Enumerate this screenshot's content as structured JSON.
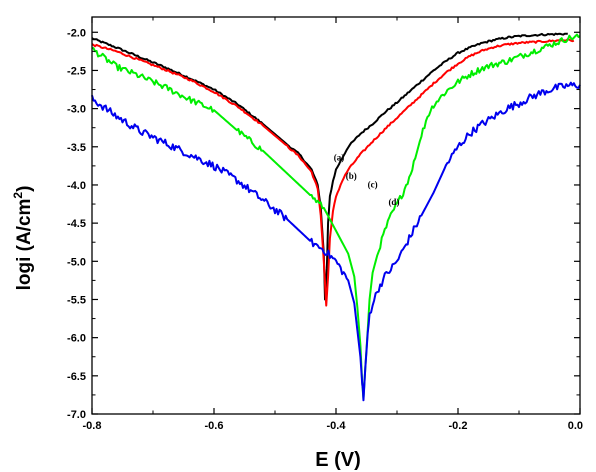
{
  "chart_data": {
    "type": "line",
    "xlabel": "E (V)",
    "ylabel_main": "logi (A/cm",
    "ylabel_sup": "2",
    "ylabel_end": ")",
    "xlim": [
      -0.8,
      0.0
    ],
    "ylim": [
      -7.0,
      -1.8
    ],
    "x_ticks": [
      -0.8,
      -0.6,
      -0.4,
      -0.2,
      0.0
    ],
    "x_tick_labels": [
      "-0.8",
      "-0.6",
      "-0.4",
      "-0.2",
      "0.0"
    ],
    "y_ticks": [
      -7.0,
      -6.5,
      -6.0,
      -5.5,
      -5.0,
      -4.5,
      -4.0,
      -3.5,
      -3.0,
      -2.5,
      -2.0
    ],
    "y_tick_labels": [
      "-7.0",
      "-6.5",
      "-6.0",
      "-5.5",
      "-5.0",
      "-4.5",
      "-4.0",
      "-3.5",
      "-3.0",
      "-2.5",
      "-2.0"
    ],
    "grid": false,
    "legend": "none",
    "annotations": [
      {
        "text": "(a)",
        "x": -0.395,
        "y": -3.68
      },
      {
        "text": "(b)",
        "x": -0.375,
        "y": -3.92
      },
      {
        "text": "(c)",
        "x": -0.34,
        "y": -4.03
      },
      {
        "text": "(d)",
        "x": -0.305,
        "y": -4.26
      }
    ],
    "series": [
      {
        "label": "(a)",
        "color": "#000000",
        "noise": 0.012,
        "x": [
          -0.8,
          -0.76,
          -0.72,
          -0.68,
          -0.64,
          -0.6,
          -0.56,
          -0.52,
          -0.48,
          -0.46,
          -0.44,
          -0.43,
          -0.425,
          -0.42,
          -0.418,
          -0.415,
          -0.413,
          -0.41,
          -0.405,
          -0.4,
          -0.39,
          -0.38,
          -0.36,
          -0.34,
          -0.32,
          -0.3,
          -0.28,
          -0.26,
          -0.24,
          -0.22,
          -0.2,
          -0.18,
          -0.16,
          -0.14,
          -0.12,
          -0.1,
          -0.06,
          -0.02
        ],
        "y": [
          -2.08,
          -2.2,
          -2.33,
          -2.46,
          -2.6,
          -2.75,
          -2.95,
          -3.2,
          -3.47,
          -3.6,
          -3.8,
          -4.0,
          -4.3,
          -4.9,
          -5.5,
          -5.1,
          -4.5,
          -4.15,
          -3.95,
          -3.8,
          -3.65,
          -3.5,
          -3.33,
          -3.2,
          -3.05,
          -2.92,
          -2.78,
          -2.64,
          -2.5,
          -2.38,
          -2.27,
          -2.2,
          -2.14,
          -2.1,
          -2.07,
          -2.05,
          -2.03,
          -2.02
        ]
      },
      {
        "label": "(b)",
        "color": "#ff0000",
        "noise": 0.012,
        "x": [
          -0.8,
          -0.76,
          -0.72,
          -0.68,
          -0.64,
          -0.6,
          -0.56,
          -0.52,
          -0.48,
          -0.46,
          -0.44,
          -0.43,
          -0.425,
          -0.42,
          -0.416,
          -0.413,
          -0.41,
          -0.405,
          -0.4,
          -0.39,
          -0.38,
          -0.36,
          -0.34,
          -0.32,
          -0.3,
          -0.28,
          -0.26,
          -0.24,
          -0.22,
          -0.2,
          -0.18,
          -0.16,
          -0.14,
          -0.12,
          -0.1,
          -0.06,
          -0.02,
          -0.01
        ],
        "y": [
          -2.16,
          -2.25,
          -2.37,
          -2.49,
          -2.62,
          -2.78,
          -2.98,
          -3.22,
          -3.49,
          -3.63,
          -3.83,
          -4.05,
          -4.4,
          -5.0,
          -5.58,
          -5.2,
          -4.7,
          -4.35,
          -4.15,
          -3.95,
          -3.8,
          -3.6,
          -3.43,
          -3.27,
          -3.12,
          -2.97,
          -2.82,
          -2.67,
          -2.53,
          -2.41,
          -2.31,
          -2.24,
          -2.19,
          -2.16,
          -2.14,
          -2.12,
          -2.1,
          -2.11
        ]
      },
      {
        "label": "(c)",
        "color": "#00ee00",
        "noise": 0.04,
        "x": [
          -0.8,
          -0.76,
          -0.72,
          -0.68,
          -0.64,
          -0.6,
          -0.56,
          -0.52,
          -0.48,
          -0.44,
          -0.42,
          -0.4,
          -0.38,
          -0.37,
          -0.365,
          -0.36,
          -0.357,
          -0.355,
          -0.352,
          -0.348,
          -0.345,
          -0.34,
          -0.33,
          -0.32,
          -0.31,
          -0.3,
          -0.29,
          -0.28,
          -0.27,
          -0.26,
          -0.25,
          -0.24,
          -0.22,
          -0.2,
          -0.18,
          -0.16,
          -0.14,
          -0.12,
          -0.1,
          -0.06,
          -0.02,
          0.0
        ],
        "y": [
          -2.22,
          -2.45,
          -2.58,
          -2.72,
          -2.88,
          -3.02,
          -3.3,
          -3.55,
          -3.85,
          -4.15,
          -4.3,
          -4.6,
          -4.9,
          -5.2,
          -5.6,
          -6.1,
          -6.6,
          -6.8,
          -6.4,
          -5.9,
          -5.5,
          -5.15,
          -4.85,
          -4.6,
          -4.4,
          -4.25,
          -4.1,
          -3.9,
          -3.65,
          -3.35,
          -3.1,
          -2.95,
          -2.78,
          -2.65,
          -2.55,
          -2.47,
          -2.42,
          -2.38,
          -2.32,
          -2.2,
          -2.08,
          -2.05
        ]
      },
      {
        "label": "(d)",
        "color": "#0000ee",
        "noise": 0.05,
        "x": [
          -0.8,
          -0.76,
          -0.72,
          -0.68,
          -0.64,
          -0.6,
          -0.56,
          -0.52,
          -0.48,
          -0.44,
          -0.42,
          -0.4,
          -0.38,
          -0.37,
          -0.365,
          -0.36,
          -0.357,
          -0.355,
          -0.352,
          -0.348,
          -0.345,
          -0.34,
          -0.33,
          -0.32,
          -0.31,
          -0.3,
          -0.29,
          -0.28,
          -0.27,
          -0.26,
          -0.24,
          -0.22,
          -0.2,
          -0.18,
          -0.16,
          -0.14,
          -0.12,
          -0.1,
          -0.08,
          -0.06,
          -0.04,
          -0.02,
          0.0
        ],
        "y": [
          -2.87,
          -3.1,
          -3.3,
          -3.45,
          -3.6,
          -3.75,
          -3.95,
          -4.2,
          -4.45,
          -4.75,
          -4.85,
          -5.0,
          -5.25,
          -5.55,
          -5.9,
          -6.25,
          -6.6,
          -6.82,
          -6.4,
          -5.95,
          -5.7,
          -5.55,
          -5.35,
          -5.2,
          -5.1,
          -5.0,
          -4.85,
          -4.7,
          -4.55,
          -4.4,
          -4.1,
          -3.75,
          -3.5,
          -3.32,
          -3.2,
          -3.1,
          -3.0,
          -2.93,
          -2.85,
          -2.78,
          -2.73,
          -2.7,
          -2.69
        ]
      }
    ]
  }
}
